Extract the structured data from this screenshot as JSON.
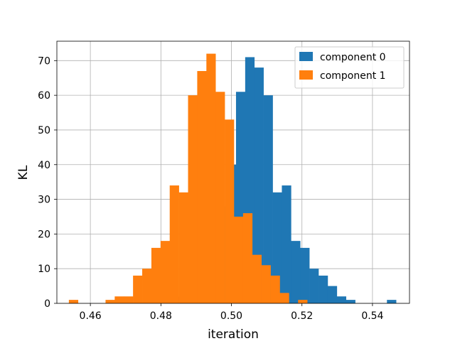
{
  "chart_data": {
    "type": "histogram",
    "title": "",
    "xlabel": "iteration",
    "ylabel": "KL",
    "xlim": [
      0.4505,
      0.5505
    ],
    "ylim": [
      0,
      75.6
    ],
    "xticks": [
      0.46,
      0.48,
      0.5,
      0.52,
      0.54
    ],
    "xtick_labels": [
      "0.46",
      "0.48",
      "0.50",
      "0.52",
      "0.54"
    ],
    "yticks": [
      0,
      10,
      20,
      30,
      40,
      50,
      60,
      70
    ],
    "ytick_labels": [
      "0",
      "10",
      "20",
      "30",
      "40",
      "50",
      "60",
      "70"
    ],
    "grid": true,
    "legend_position": "top-right",
    "series": [
      {
        "name": "component 0",
        "color": "#1f77b4",
        "bins": [
          {
            "x0": 0.4805,
            "x1": 0.4831,
            "count": 1
          },
          {
            "x0": 0.4831,
            "x1": 0.4857,
            "count": 2
          },
          {
            "x0": 0.4857,
            "x1": 0.4883,
            "count": 5
          },
          {
            "x0": 0.4883,
            "x1": 0.4909,
            "count": 6
          },
          {
            "x0": 0.4909,
            "x1": 0.4935,
            "count": 12
          },
          {
            "x0": 0.4935,
            "x1": 0.4961,
            "count": 18
          },
          {
            "x0": 0.4961,
            "x1": 0.4987,
            "count": 28
          },
          {
            "x0": 0.4987,
            "x1": 0.5013,
            "count": 40
          },
          {
            "x0": 0.5013,
            "x1": 0.5039,
            "count": 61
          },
          {
            "x0": 0.5039,
            "x1": 0.5065,
            "count": 71
          },
          {
            "x0": 0.5065,
            "x1": 0.5091,
            "count": 68
          },
          {
            "x0": 0.5091,
            "x1": 0.5117,
            "count": 60
          },
          {
            "x0": 0.5117,
            "x1": 0.5143,
            "count": 32
          },
          {
            "x0": 0.5143,
            "x1": 0.5169,
            "count": 34
          },
          {
            "x0": 0.5169,
            "x1": 0.5195,
            "count": 18
          },
          {
            "x0": 0.5195,
            "x1": 0.5221,
            "count": 16
          },
          {
            "x0": 0.5221,
            "x1": 0.5247,
            "count": 10
          },
          {
            "x0": 0.5247,
            "x1": 0.5273,
            "count": 8
          },
          {
            "x0": 0.5273,
            "x1": 0.5299,
            "count": 5
          },
          {
            "x0": 0.5299,
            "x1": 0.5325,
            "count": 2
          },
          {
            "x0": 0.5325,
            "x1": 0.5351,
            "count": 1
          },
          {
            "x0": 0.5441,
            "x1": 0.5467,
            "count": 1
          }
        ]
      },
      {
        "name": "component 1",
        "color": "#ff7f0e",
        "bins": [
          {
            "x0": 0.4539,
            "x1": 0.4565,
            "count": 1
          },
          {
            "x0": 0.4643,
            "x1": 0.4669,
            "count": 1
          },
          {
            "x0": 0.4669,
            "x1": 0.4695,
            "count": 2
          },
          {
            "x0": 0.4695,
            "x1": 0.4721,
            "count": 2
          },
          {
            "x0": 0.4721,
            "x1": 0.4747,
            "count": 8
          },
          {
            "x0": 0.4747,
            "x1": 0.4773,
            "count": 10
          },
          {
            "x0": 0.4773,
            "x1": 0.4799,
            "count": 16
          },
          {
            "x0": 0.4799,
            "x1": 0.4825,
            "count": 18
          },
          {
            "x0": 0.4825,
            "x1": 0.4851,
            "count": 34
          },
          {
            "x0": 0.4851,
            "x1": 0.4877,
            "count": 32
          },
          {
            "x0": 0.4877,
            "x1": 0.4903,
            "count": 60
          },
          {
            "x0": 0.4903,
            "x1": 0.4929,
            "count": 67
          },
          {
            "x0": 0.4929,
            "x1": 0.4955,
            "count": 72
          },
          {
            "x0": 0.4955,
            "x1": 0.4981,
            "count": 61
          },
          {
            "x0": 0.4981,
            "x1": 0.5007,
            "count": 53
          },
          {
            "x0": 0.5007,
            "x1": 0.5033,
            "count": 25
          },
          {
            "x0": 0.5033,
            "x1": 0.5059,
            "count": 26
          },
          {
            "x0": 0.5059,
            "x1": 0.5085,
            "count": 14
          },
          {
            "x0": 0.5085,
            "x1": 0.5111,
            "count": 11
          },
          {
            "x0": 0.5111,
            "x1": 0.5137,
            "count": 8
          },
          {
            "x0": 0.5137,
            "x1": 0.5163,
            "count": 3
          },
          {
            "x0": 0.5163,
            "x1": 0.5189,
            "count": 0
          },
          {
            "x0": 0.5189,
            "x1": 0.5215,
            "count": 1
          }
        ]
      }
    ]
  }
}
